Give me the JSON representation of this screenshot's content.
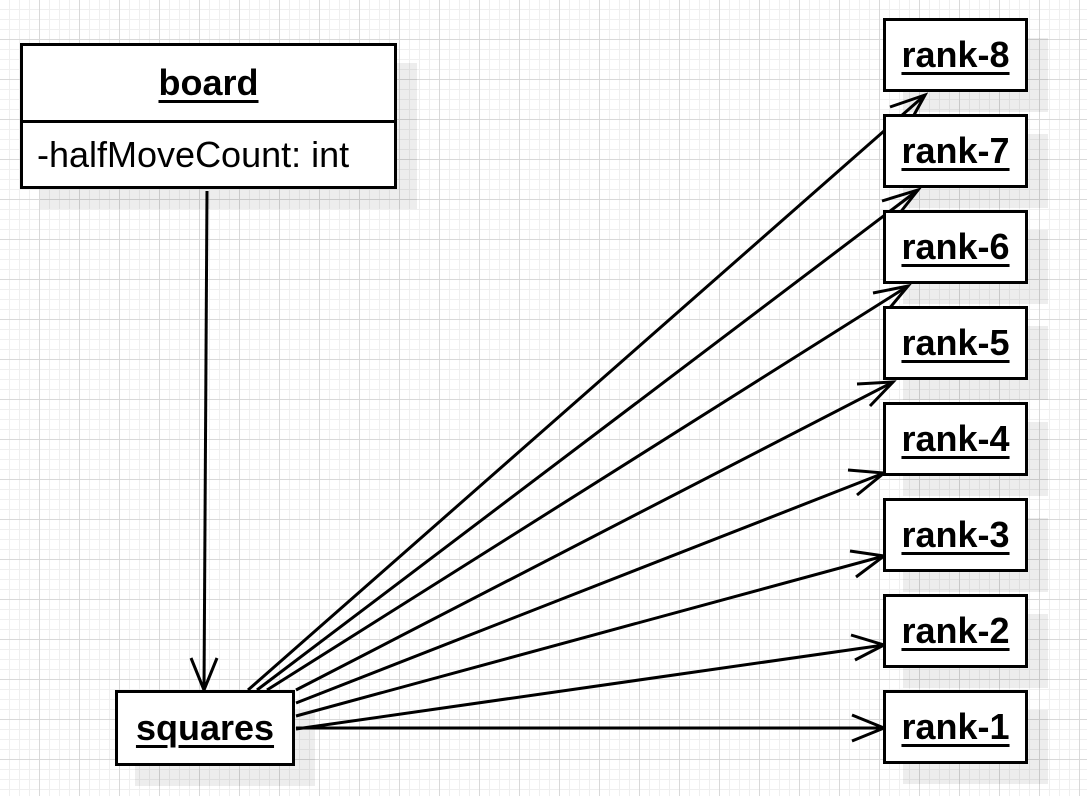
{
  "diagram": {
    "board": {
      "title": "board",
      "attribute": "-halfMoveCount: int"
    },
    "squares": {
      "title": "squares"
    },
    "ranks": [
      "rank-8",
      "rank-7",
      "rank-6",
      "rank-5",
      "rank-4",
      "rank-3",
      "rank-2",
      "rank-1"
    ],
    "edges": [
      {
        "from": "board",
        "to": "squares"
      },
      {
        "from": "squares",
        "to": "rank-8"
      },
      {
        "from": "squares",
        "to": "rank-7"
      },
      {
        "from": "squares",
        "to": "rank-6"
      },
      {
        "from": "squares",
        "to": "rank-5"
      },
      {
        "from": "squares",
        "to": "rank-4"
      },
      {
        "from": "squares",
        "to": "rank-3"
      },
      {
        "from": "squares",
        "to": "rank-2"
      },
      {
        "from": "squares",
        "to": "rank-1"
      }
    ]
  }
}
